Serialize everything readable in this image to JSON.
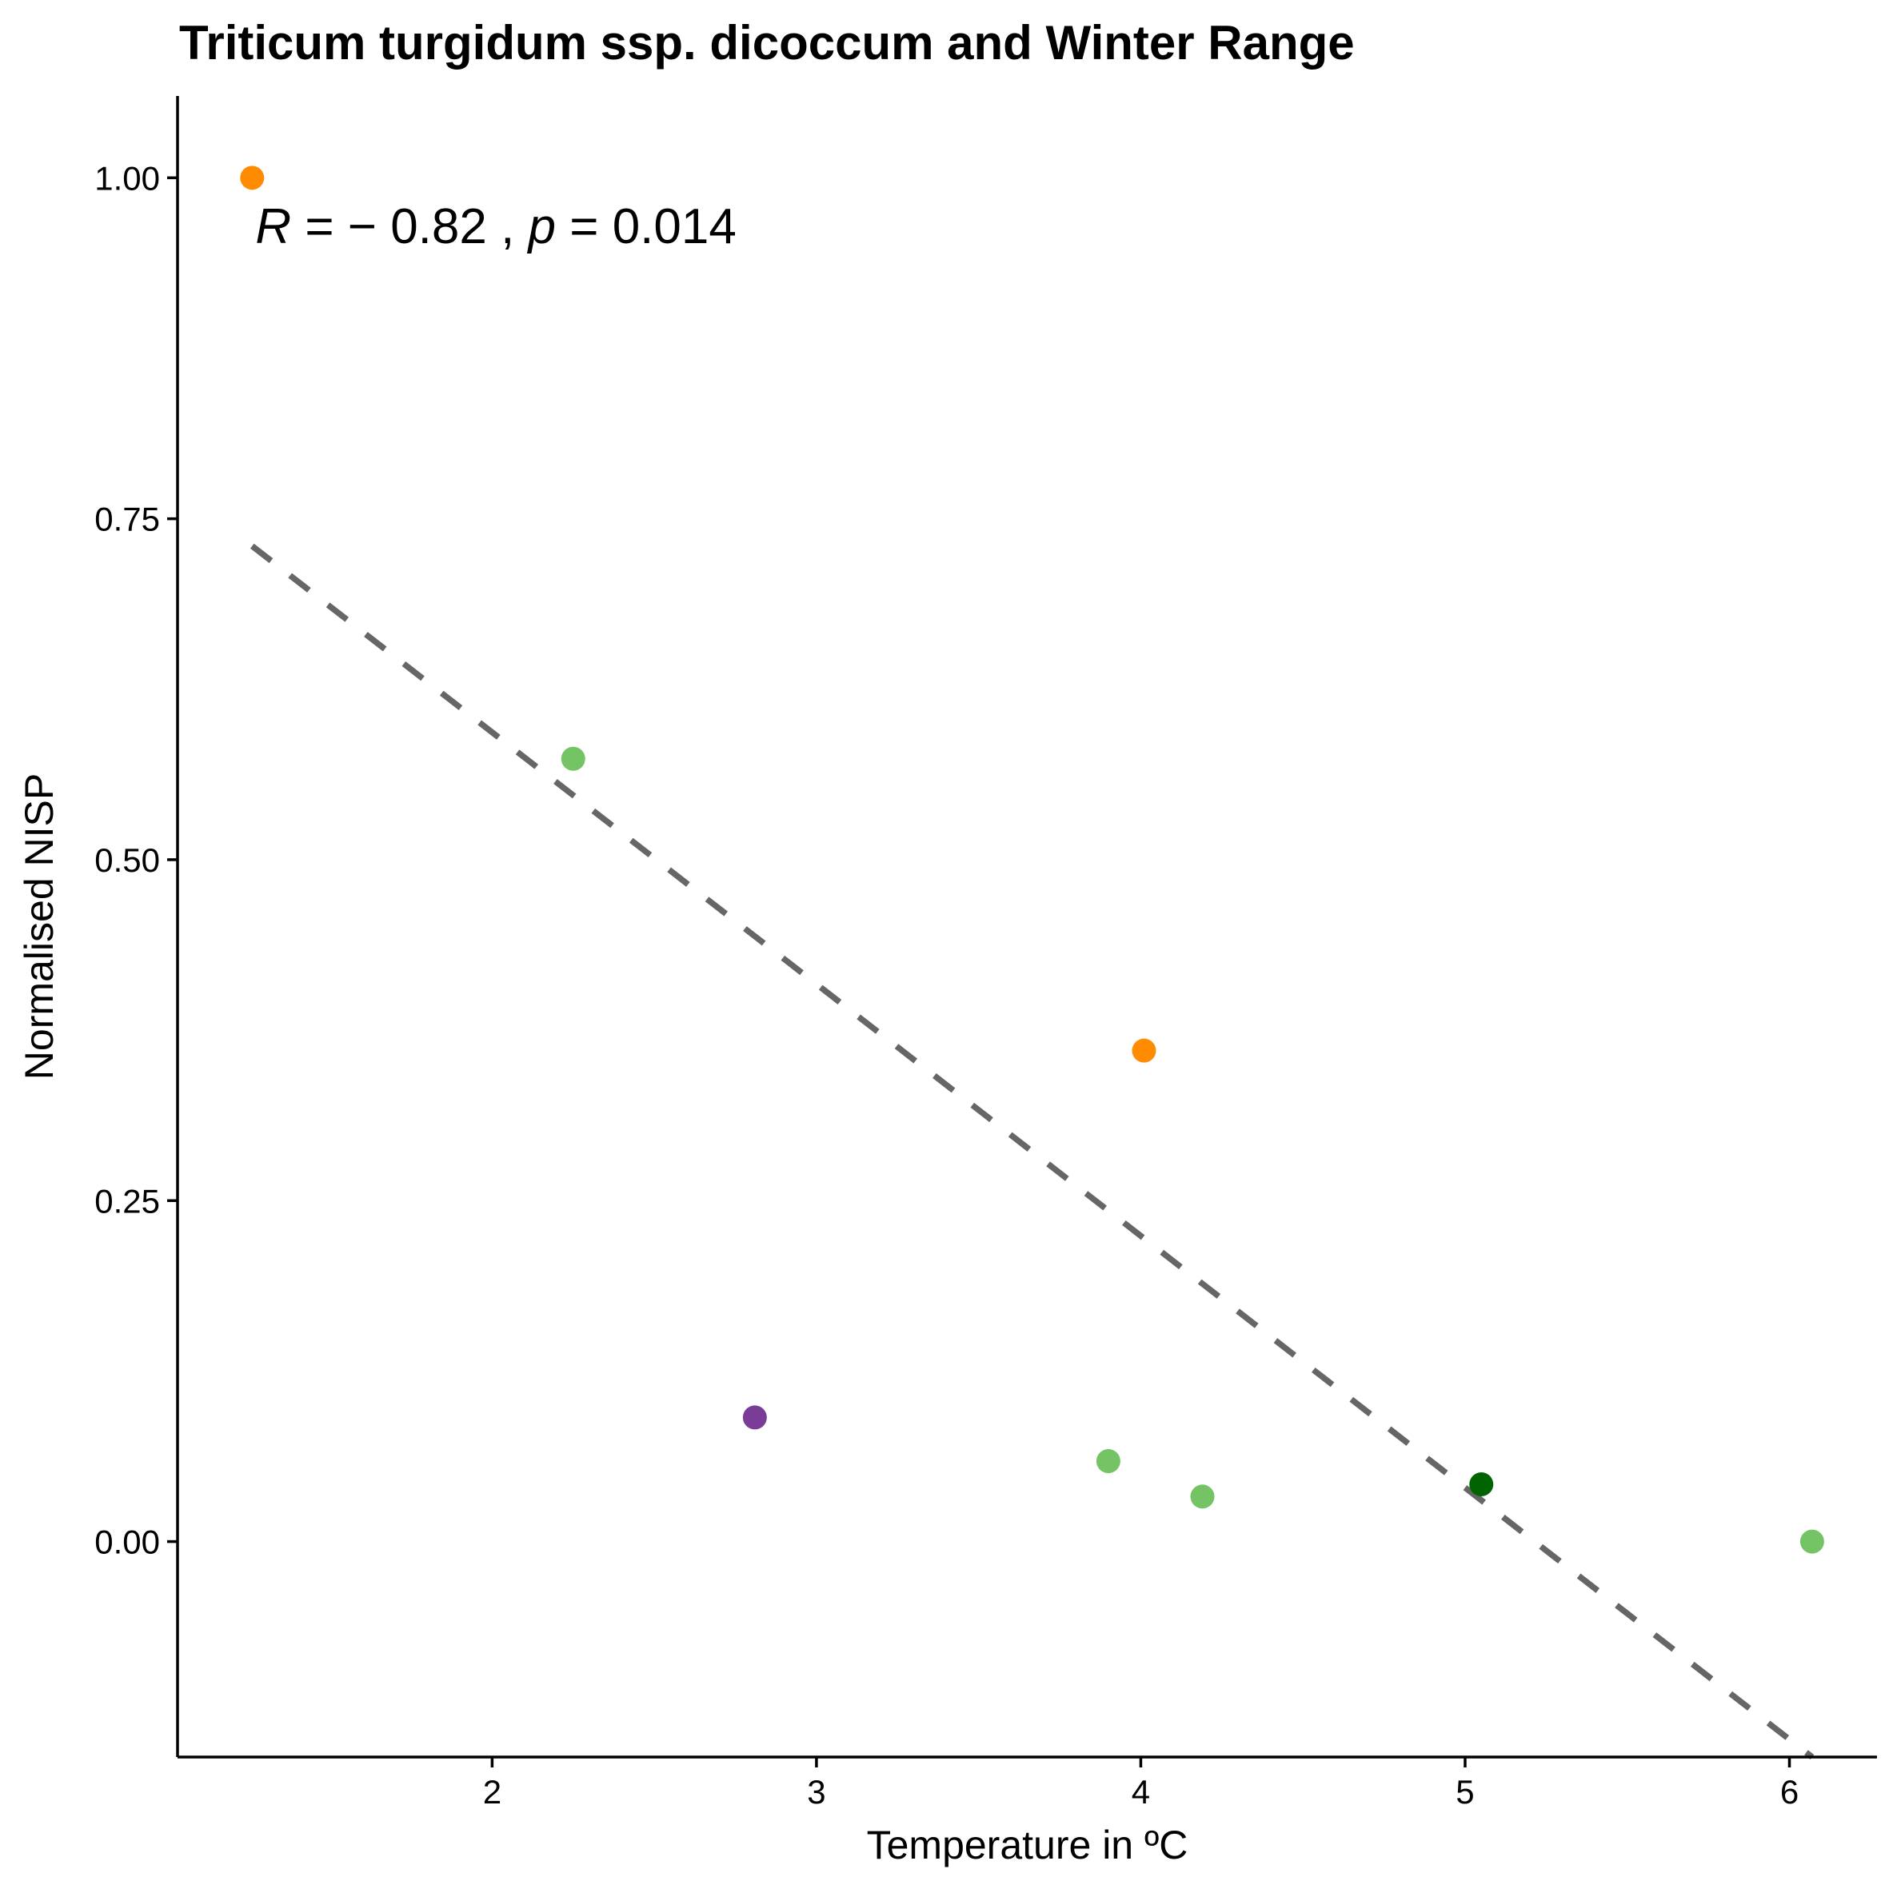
{
  "chart_data": {
    "type": "scatter",
    "title": "Triticum turgidum ssp. dicoccum and Winter Range",
    "xlabel": "Temperature in ºC",
    "ylabel": "Normalised NISP",
    "xlim": [
      1.03,
      6.27
    ],
    "ylim": [
      -0.158,
      1.06
    ],
    "x_ticks": [
      2,
      3,
      4,
      5,
      6
    ],
    "x_tick_labels": [
      "2",
      "3",
      "4",
      "5",
      "6"
    ],
    "y_ticks": [
      0,
      0.25,
      0.5,
      0.75,
      1.0
    ],
    "y_tick_labels": [
      "0.00",
      "0.25",
      "0.50",
      "0.75",
      "1.00"
    ],
    "grid": false,
    "legend": "none",
    "annotation": {
      "R_symbol": "R",
      "eq1": " = − 0.82 , ",
      "p_symbol": "p",
      "eq2": " = 0.014",
      "x": 1.27,
      "y": 0.965
    },
    "points": [
      {
        "x": 1.26,
        "y": 1.0,
        "color": "#ff8c00"
      },
      {
        "x": 2.25,
        "y": 0.574,
        "color": "#74c365"
      },
      {
        "x": 2.81,
        "y": 0.091,
        "color": "#7a3d97"
      },
      {
        "x": 3.9,
        "y": 0.059,
        "color": "#74c365"
      },
      {
        "x": 4.01,
        "y": 0.36,
        "color": "#ff8c00"
      },
      {
        "x": 4.19,
        "y": 0.033,
        "color": "#74c365"
      },
      {
        "x": 5.05,
        "y": 0.042,
        "color": "#006400"
      },
      {
        "x": 6.07,
        "y": 0.0,
        "color": "#74c365"
      }
    ],
    "fit_line": {
      "x": [
        1.26,
        6.07
      ],
      "y": [
        0.73,
        -0.158
      ],
      "style": "dashed",
      "color": "#666666"
    }
  }
}
